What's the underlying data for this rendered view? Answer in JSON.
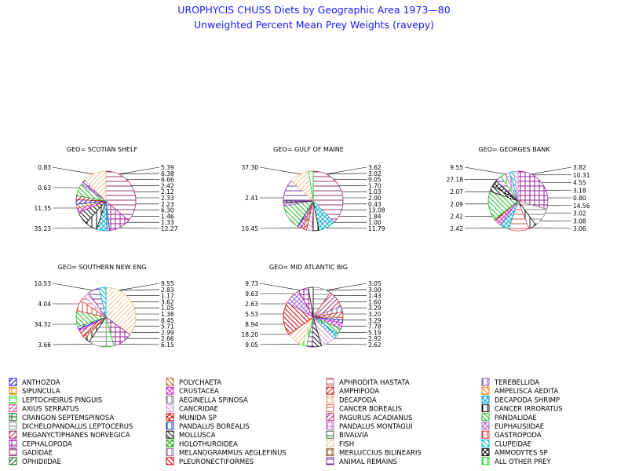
{
  "chart_data": {
    "type": "pie",
    "title": "UROPHYCIS CHUSS Diets by Geographic Area 1973—80",
    "subtitle": "Unweighted Percent Mean Prey Weights (ravepy)",
    "legend_position": "bottom",
    "legend": [
      {
        "label": "ANTHOZOA",
        "color": "#2222dd"
      },
      {
        "label": "POLYCHAETA",
        "color": "#b87333"
      },
      {
        "label": "APHRODITA HASTATA",
        "color": "#c87070"
      },
      {
        "label": "TEREBELLIDA",
        "color": "#8855aa"
      },
      {
        "label": "SIPUNCULA",
        "color": "#dd8800"
      },
      {
        "label": "CRUSTACEA",
        "color": "#cc33cc"
      },
      {
        "label": "AMPHIPODA",
        "color": "#bb2222"
      },
      {
        "label": "AMPELISCA AEDITA",
        "color": "#ff7700"
      },
      {
        "label": "LEPTOCHEIRUS PINGUIS",
        "color": "#22cc22"
      },
      {
        "label": "AEGINELLA SPINOSA",
        "color": "#777777"
      },
      {
        "label": "DECAPODA",
        "color": "#e8b888"
      },
      {
        "label": "DECAPODA SHRIMP",
        "color": "#00aacc"
      },
      {
        "label": "AXIUS SERRATUS",
        "color": "#dd4488"
      },
      {
        "label": "CANCRIDAE",
        "color": "#cc99cc"
      },
      {
        "label": "CANCER BOREALIS",
        "color": "#dd5555"
      },
      {
        "label": "CANCER IRRORATUS",
        "color": "#111111"
      },
      {
        "label": "CRANGON SEPTEMSPINOSA",
        "color": "#116611"
      },
      {
        "label": "MUNIDA SP",
        "color": "#dd0000"
      },
      {
        "label": "PAGURUS ACADIANUS",
        "color": "#aa2266"
      },
      {
        "label": "PANDALIDAE",
        "color": "#22bb22"
      },
      {
        "label": "DICHELOPANDALUS LEPTOCERUS",
        "color": "#888888"
      },
      {
        "label": "PANDALUS BOREALIS",
        "color": "#2244cc"
      },
      {
        "label": "PANDALUS MONTAGUI",
        "color": "#cc66cc"
      },
      {
        "label": "EUPHAUSIIDAE",
        "color": "#aa66cc"
      },
      {
        "label": "MEGANYCTIPHANES NORVEGICA",
        "color": "#aa3366"
      },
      {
        "label": "MOLLUSCA",
        "color": "#111111"
      },
      {
        "label": "BIVALVIA",
        "color": "#336633"
      },
      {
        "label": "GASTROPODA",
        "color": "#dd3333"
      },
      {
        "label": "CEPHALOPODA",
        "color": "#992299"
      },
      {
        "label": "HOLOTHUROIDEA",
        "color": "#22aa22"
      },
      {
        "label": "FISH",
        "color": "#e8c898"
      },
      {
        "label": "CLUPEIDAE",
        "color": "#00bbdd"
      },
      {
        "label": "GADIDAE",
        "color": "#993377"
      },
      {
        "label": "MELANOGRAMMUS AEGLEFINUS",
        "color": "#9966aa"
      },
      {
        "label": "MERLUCCIUS BILINEARIS",
        "color": "#996644"
      },
      {
        "label": "AMMODYTES SP",
        "color": "#111111"
      },
      {
        "label": "OPHIDIIDAE",
        "color": "#116611"
      },
      {
        "label": "PLEURONECTIFORMES",
        "color": "#cc0000"
      },
      {
        "label": "ANIMAL REMAINS",
        "color": "#773399"
      },
      {
        "label": "ALL OTHER PREY",
        "color": "#22cc22"
      }
    ],
    "pies": [
      {
        "name": "GEO= SCOTIAN SHELF",
        "slices": [
          {
            "category": "GADIDAE",
            "value": 35.23
          },
          {
            "category": "CEPHALOPODA",
            "value": 11.35
          },
          {
            "category": "PANDALUS BOREALIS",
            "value": 0.83
          },
          {
            "category": "DICHELOPANDALUS LEPTOCERUS",
            "value": 0.63
          },
          {
            "category": "DECAPODA SHRIMP",
            "value": 5.39
          },
          {
            "category": "CANCER IRRORATUS",
            "value": 6.38
          },
          {
            "category": "MOLLUSCA",
            "value": 6.66
          },
          {
            "category": "CRUSTACEA",
            "value": 2.42
          },
          {
            "category": "POLYCHAETA",
            "value": 2.12
          },
          {
            "category": "ANTHOZOA",
            "value": 2.33
          },
          {
            "category": "AMPHIPODA",
            "value": 2.23
          },
          {
            "category": "PANDALIDAE",
            "value": 6.3
          },
          {
            "category": "EUPHAUSIIDAE",
            "value": 1.46
          },
          {
            "category": "ANIMAL REMAINS",
            "value": 1.33
          },
          {
            "category": "FISH",
            "value": 12.27
          }
        ],
        "labels_left": [
          "0.83",
          "0.63",
          "11.35",
          "35.23"
        ],
        "labels_right": [
          "5.39",
          "6.38",
          "6.66",
          "2.42",
          "2.12",
          "2.33",
          "2.23",
          "6.30",
          "1.46",
          "1.33",
          "12.27"
        ]
      },
      {
        "name": "GEO= GULF OF MAINE",
        "slices": [
          {
            "category": "GADIDAE",
            "value": 37.3
          },
          {
            "category": "DECAPODA SHRIMP",
            "value": 9.05
          },
          {
            "category": "CANCER IRRORATUS",
            "value": 3.62
          },
          {
            "category": "CANCRIDAE",
            "value": 3.02
          },
          {
            "category": "AMPHIPODA",
            "value": 1.7
          },
          {
            "category": "POLYCHAETA",
            "value": 1.03
          },
          {
            "category": "CRUSTACEA",
            "value": 2.0
          },
          {
            "category": "ANTHOZOA",
            "value": 0.43
          },
          {
            "category": "PANDALIDAE",
            "value": 13.08
          },
          {
            "category": "EUPHAUSIIDAE",
            "value": 1.84
          },
          {
            "category": "MOLLUSCA",
            "value": 1.0
          },
          {
            "category": "ANIMAL REMAINS",
            "value": 11.79
          },
          {
            "category": "FISH",
            "value": 10.45
          },
          {
            "category": "ALL OTHER PREY",
            "value": 2.41
          }
        ],
        "labels_left": [
          "37.30",
          "2.41",
          "10.45"
        ],
        "labels_right": [
          "3.62",
          "3.02",
          "9.05",
          "1.70",
          "1.03",
          "2.00",
          "0.43",
          "13.08",
          "1.84",
          "1.00",
          "11.79"
        ]
      },
      {
        "name": "GEO= GEORGES BANK",
        "slices": [
          {
            "category": "CEPHALOPODA",
            "value": 27.18
          },
          {
            "category": "DICHELOPANDALUS LEPTOCERUS",
            "value": 9.55
          },
          {
            "category": "CANCER IRRORATUS",
            "value": 3.82
          },
          {
            "category": "CANCER BOREALIS",
            "value": 10.31
          },
          {
            "category": "DECAPODA SHRIMP",
            "value": 4.55
          },
          {
            "category": "CRUSTACEA",
            "value": 3.18
          },
          {
            "category": "AMPHIPODA",
            "value": 0.8
          },
          {
            "category": "PANDALIDAE",
            "value": 14.56
          },
          {
            "category": "MOLLUSCA",
            "value": 3.02
          },
          {
            "category": "AMMODYTES SP",
            "value": 3.08
          },
          {
            "category": "ANIMAL REMAINS",
            "value": 3.06
          },
          {
            "category": "ALL OTHER PREY",
            "value": 2.42
          },
          {
            "category": "PANDALUS MONTAGUI",
            "value": 2.42
          },
          {
            "category": "CLUPEIDAE",
            "value": 2.07
          },
          {
            "category": "CANCRIDAE",
            "value": 2.09
          }
        ],
        "labels_left": [
          "9.55",
          "27.18",
          "2.07",
          "2.09",
          "2.42",
          "2.42"
        ],
        "labels_right": [
          "3.82",
          "10.31",
          "4.55",
          "3.18",
          "0.80",
          "14.56",
          "3.02",
          "3.08",
          "3.06"
        ]
      },
      {
        "name": "GEO= SOUTHERN NEW ENG",
        "slices": [
          {
            "category": "FISH",
            "value": 34.32
          },
          {
            "category": "CEPHALOPODA",
            "value": 10.53
          },
          {
            "category": "LEPTOCHEIRUS PINGUIS",
            "value": 4.04
          },
          {
            "category": "DICHELOPANDALUS LEPTOCERUS",
            "value": 9.55
          },
          {
            "category": "CANCER IRRORATUS",
            "value": 2.83
          },
          {
            "category": "POLYCHAETA",
            "value": 1.17
          },
          {
            "category": "AMPHIPODA",
            "value": 3.62
          },
          {
            "category": "CRUSTACEA",
            "value": 1.05
          },
          {
            "category": "ANTHOZOA",
            "value": 1.38
          },
          {
            "category": "PANDALIDAE",
            "value": 8.45
          },
          {
            "category": "GASTROPODA",
            "value": 5.71
          },
          {
            "category": "CANCER BOREALIS",
            "value": 2.99
          },
          {
            "category": "CANCRIDAE",
            "value": 2.66
          },
          {
            "category": "ANIMAL REMAINS",
            "value": 6.15
          },
          {
            "category": "CLUPEIDAE",
            "value": 3.66
          }
        ],
        "labels_left": [
          "10.53",
          "4.04",
          "34.32",
          "3.66"
        ],
        "labels_right": [
          "9.55",
          "2.83",
          "1.17",
          "3.62",
          "1.05",
          "1.38",
          "8.45",
          "5.71",
          "2.99",
          "2.66",
          "6.15"
        ]
      },
      {
        "name": "GEO= MID ATLANTIC BIG",
        "slices": [
          {
            "category": "DICHELOPANDALUS LEPTOCERUS",
            "value": 9.73
          },
          {
            "category": "MEGANYCTIPHANES NORVEGICA",
            "value": 9.63
          },
          {
            "category": "TEREBELLIDA",
            "value": 3.05
          },
          {
            "category": "AMPHIPODA",
            "value": 3.0
          },
          {
            "category": "POLYCHAETA",
            "value": 1.43
          },
          {
            "category": "ANTHOZOA",
            "value": 1.6
          },
          {
            "category": "CRUSTACEA",
            "value": 3.29
          },
          {
            "category": "PANDALIDAE",
            "value": 3.2
          },
          {
            "category": "DECAPODA SHRIMP",
            "value": 3.29
          },
          {
            "category": "CANCRIDAE",
            "value": 7.78
          },
          {
            "category": "MOLLUSCA",
            "value": 5.19
          },
          {
            "category": "ANIMAL REMAINS",
            "value": 2.92
          },
          {
            "category": "ALL OTHER PREY",
            "value": 2.62
          },
          {
            "category": "FISH",
            "value": 9.05
          },
          {
            "category": "PLEURONECTIFORMES",
            "value": 18.2
          },
          {
            "category": "EUPHAUSIIDAE",
            "value": 8.94
          },
          {
            "category": "CEPHALOPODA",
            "value": 5.53
          },
          {
            "category": "CANCER IRRORATUS",
            "value": 2.63
          }
        ],
        "labels_left": [
          "9.73",
          "9.63",
          "2.63",
          "5.53",
          "8.94",
          "18.20",
          "9.05"
        ],
        "labels_right": [
          "3.05",
          "3.00",
          "1.43",
          "1.60",
          "3.29",
          "3.20",
          "3.29",
          "7.78",
          "5.19",
          "2.92",
          "2.62"
        ]
      }
    ]
  }
}
